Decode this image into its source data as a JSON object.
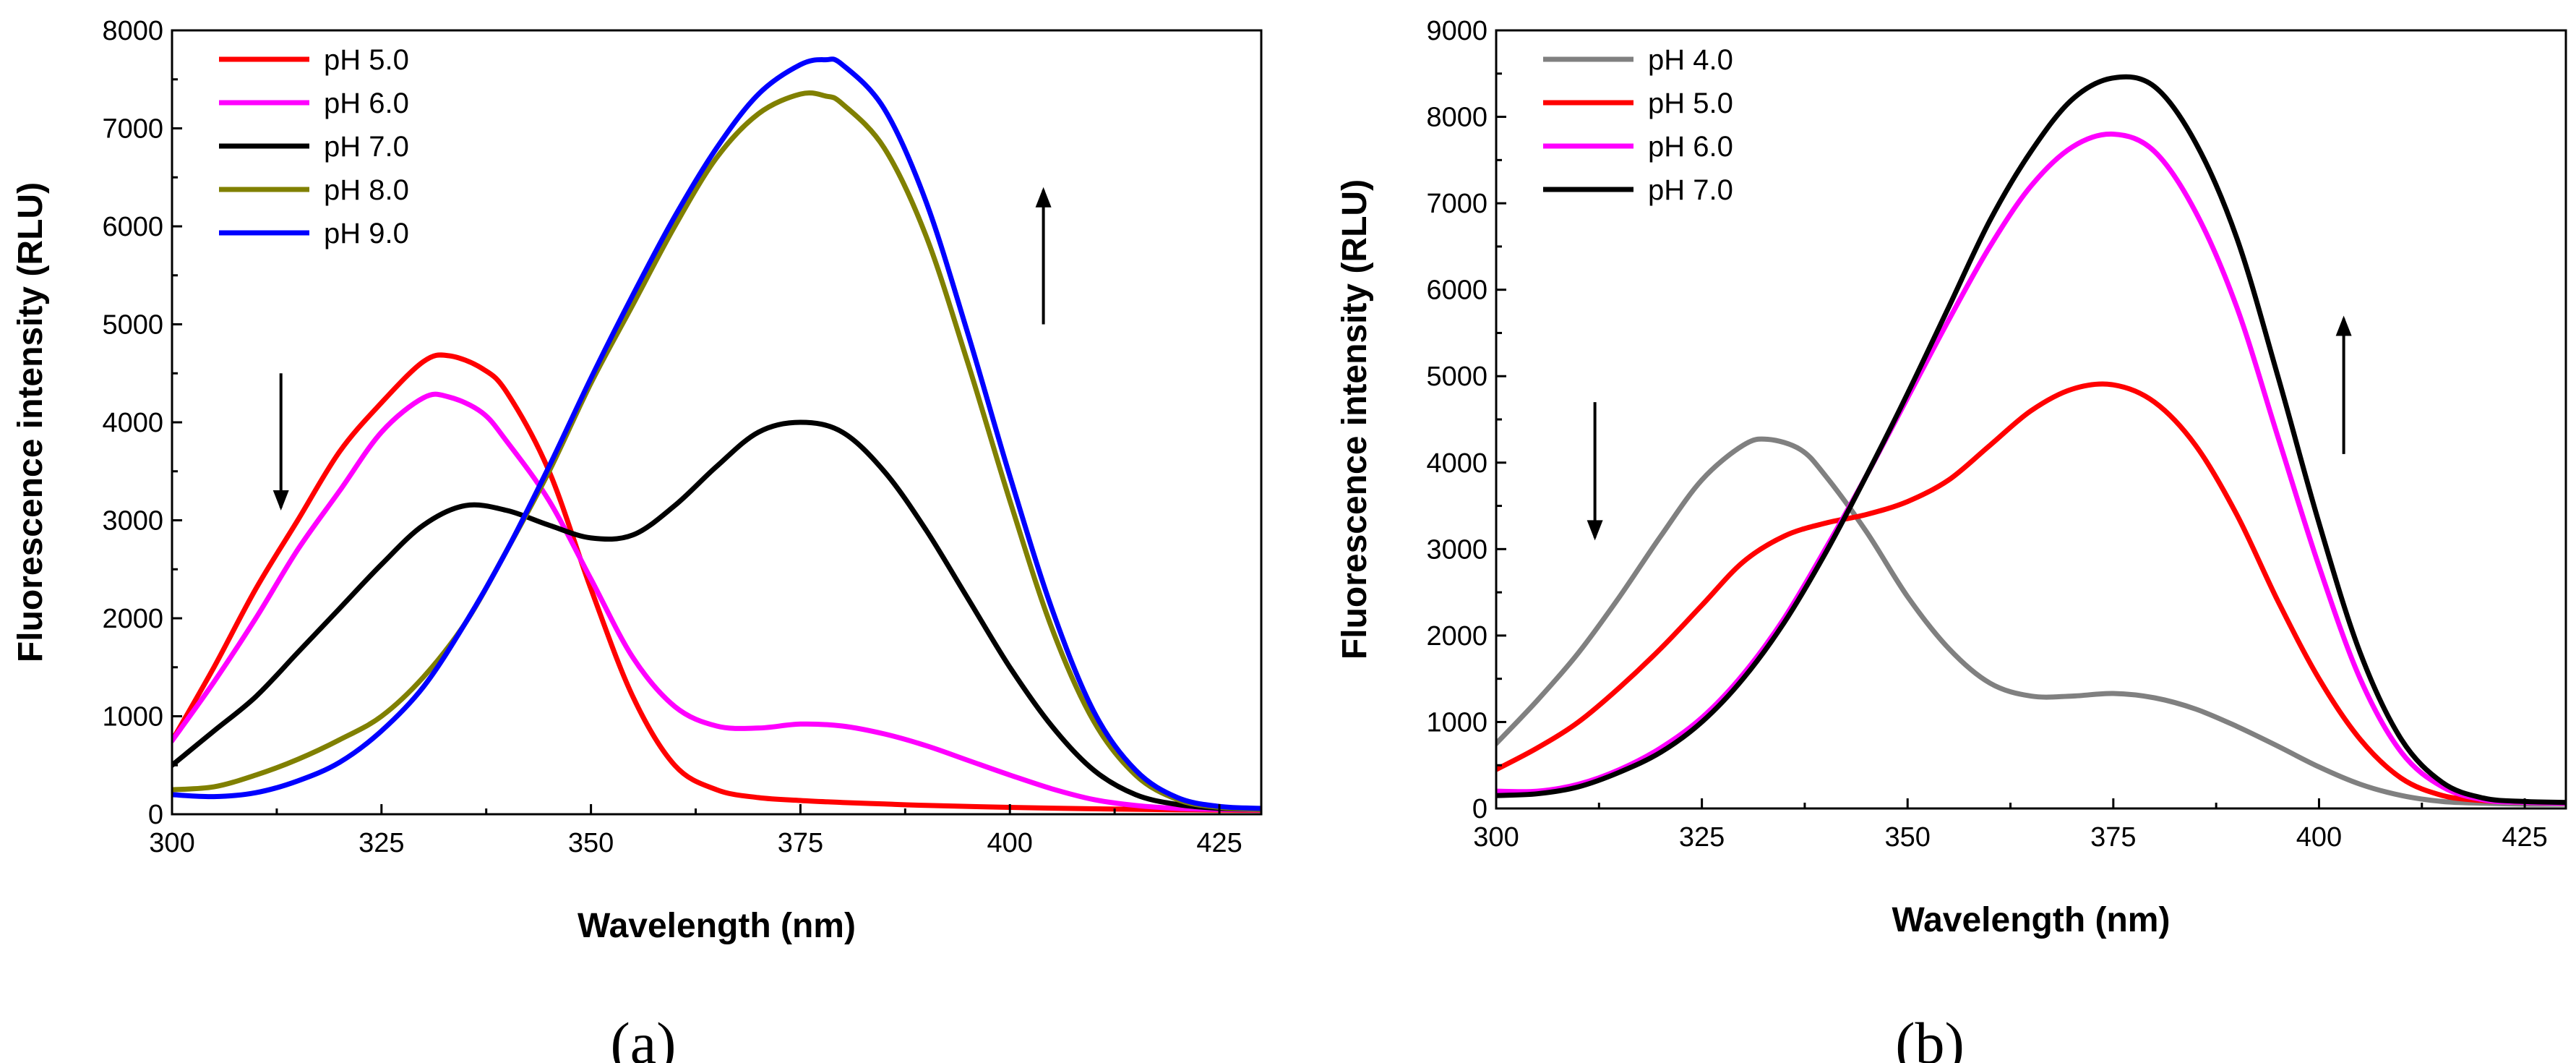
{
  "chart_data": [
    {
      "type": "line",
      "panel_label": "(a)",
      "xlabel": "Wavelength (nm)",
      "ylabel": "Fluorescence intensity (RLU)",
      "xlim": [
        300,
        430
      ],
      "ylim": [
        0,
        8000
      ],
      "xticks": [
        300,
        325,
        350,
        375,
        400,
        425
      ],
      "yticks": [
        0,
        1000,
        2000,
        3000,
        4000,
        5000,
        6000,
        7000,
        8000
      ],
      "legend_position": "top-left",
      "arrows": [
        {
          "x": 313,
          "y_from": 4500,
          "y_to": 3100,
          "direction": "down"
        },
        {
          "x": 404,
          "y_from": 5000,
          "y_to": 6400,
          "direction": "up"
        }
      ],
      "series": [
        {
          "name": "pH 5.0",
          "color": "#ff0000",
          "x": [
            300,
            305,
            310,
            315,
            320,
            325,
            330,
            333,
            337,
            340,
            345,
            350,
            355,
            360,
            365,
            370,
            375,
            380,
            385,
            390,
            400,
            410,
            420,
            430
          ],
          "y": [
            750,
            1500,
            2300,
            3000,
            3700,
            4200,
            4620,
            4680,
            4550,
            4300,
            3500,
            2300,
            1200,
            500,
            250,
            170,
            140,
            120,
            105,
            90,
            70,
            55,
            45,
            40
          ]
        },
        {
          "name": "pH 6.0",
          "color": "#ff00ff",
          "x": [
            300,
            305,
            310,
            315,
            320,
            325,
            330,
            333,
            337,
            340,
            345,
            350,
            355,
            360,
            365,
            370,
            375,
            380,
            385,
            390,
            395,
            400,
            405,
            410,
            415,
            420,
            425,
            430
          ],
          "y": [
            750,
            1350,
            2000,
            2700,
            3300,
            3900,
            4250,
            4260,
            4100,
            3800,
            3200,
            2400,
            1600,
            1100,
            900,
            880,
            920,
            900,
            820,
            700,
            550,
            400,
            260,
            150,
            90,
            60,
            50,
            45
          ]
        },
        {
          "name": "pH 7.0",
          "color": "#000000",
          "x": [
            300,
            305,
            310,
            315,
            320,
            325,
            330,
            335,
            340,
            345,
            350,
            355,
            360,
            365,
            370,
            375,
            380,
            385,
            390,
            395,
            400,
            405,
            410,
            415,
            420,
            425,
            430
          ],
          "y": [
            500,
            850,
            1200,
            1650,
            2100,
            2550,
            2950,
            3150,
            3100,
            2950,
            2820,
            2850,
            3150,
            3550,
            3900,
            4000,
            3900,
            3500,
            2900,
            2200,
            1500,
            900,
            450,
            200,
            100,
            60,
            50
          ]
        },
        {
          "name": "pH 8.0",
          "color": "#808000",
          "x": [
            300,
            305,
            310,
            315,
            320,
            325,
            330,
            335,
            340,
            345,
            350,
            355,
            360,
            365,
            370,
            375,
            378,
            380,
            385,
            390,
            395,
            400,
            405,
            410,
            415,
            420,
            425,
            430
          ],
          "y": [
            250,
            280,
            400,
            560,
            760,
            1000,
            1400,
            1950,
            2700,
            3500,
            4400,
            5200,
            6000,
            6700,
            7150,
            7350,
            7330,
            7250,
            6800,
            5900,
            4600,
            3200,
            1900,
            950,
            400,
            150,
            70,
            50
          ]
        },
        {
          "name": "pH 9.0",
          "color": "#0000ff",
          "x": [
            300,
            305,
            310,
            315,
            320,
            325,
            330,
            335,
            340,
            345,
            350,
            355,
            360,
            365,
            370,
            375,
            378,
            380,
            385,
            390,
            395,
            400,
            405,
            410,
            415,
            420,
            425,
            430
          ],
          "y": [
            200,
            180,
            220,
            340,
            530,
            850,
            1300,
            1950,
            2700,
            3550,
            4450,
            5300,
            6100,
            6800,
            7350,
            7650,
            7700,
            7650,
            7200,
            6250,
            4900,
            3450,
            2100,
            1050,
            450,
            170,
            80,
            60
          ]
        }
      ]
    },
    {
      "type": "line",
      "panel_label": "(b)",
      "xlabel": "Wavelength (nm)",
      "ylabel": "Fluorescence intensity (RLU)",
      "xlim": [
        300,
        430
      ],
      "ylim": [
        0,
        9000
      ],
      "xticks": [
        300,
        325,
        350,
        375,
        400,
        425
      ],
      "yticks": [
        0,
        1000,
        2000,
        3000,
        4000,
        5000,
        6000,
        7000,
        8000,
        9000
      ],
      "legend_position": "top-left",
      "arrows": [
        {
          "x": 312,
          "y_from": 4700,
          "y_to": 3100,
          "direction": "down"
        },
        {
          "x": 403,
          "y_from": 4100,
          "y_to": 5700,
          "direction": "up"
        }
      ],
      "series": [
        {
          "name": "pH 4.0",
          "color": "#808080",
          "x": [
            300,
            305,
            310,
            315,
            320,
            325,
            330,
            333,
            337,
            340,
            345,
            350,
            355,
            360,
            365,
            370,
            375,
            380,
            385,
            390,
            395,
            400,
            405,
            410,
            415,
            420,
            425,
            430
          ],
          "y": [
            750,
            1250,
            1800,
            2450,
            3150,
            3800,
            4200,
            4270,
            4150,
            3850,
            3200,
            2450,
            1850,
            1450,
            1300,
            1300,
            1330,
            1280,
            1150,
            950,
            720,
            480,
            280,
            150,
            80,
            60,
            50,
            50
          ]
        },
        {
          "name": "pH 5.0",
          "color": "#ff0000",
          "x": [
            300,
            305,
            310,
            315,
            320,
            325,
            330,
            335,
            340,
            345,
            350,
            355,
            360,
            365,
            370,
            375,
            380,
            385,
            390,
            395,
            400,
            405,
            410,
            415,
            420,
            425,
            430
          ],
          "y": [
            450,
            700,
            1000,
            1400,
            1850,
            2350,
            2850,
            3150,
            3300,
            3400,
            3550,
            3800,
            4200,
            4600,
            4850,
            4900,
            4700,
            4200,
            3400,
            2400,
            1500,
            800,
            350,
            150,
            90,
            70,
            60
          ]
        },
        {
          "name": "pH 6.0",
          "color": "#ff00ff",
          "x": [
            300,
            305,
            310,
            315,
            320,
            325,
            330,
            335,
            340,
            345,
            350,
            355,
            360,
            365,
            370,
            375,
            380,
            385,
            390,
            395,
            400,
            405,
            410,
            415,
            420,
            425,
            430
          ],
          "y": [
            200,
            200,
            280,
            450,
            700,
            1050,
            1550,
            2200,
            3000,
            3850,
            4750,
            5650,
            6500,
            7200,
            7650,
            7800,
            7600,
            6900,
            5800,
            4300,
            2800,
            1500,
            650,
            250,
            100,
            70,
            60
          ]
        },
        {
          "name": "pH 7.0",
          "color": "#000000",
          "x": [
            300,
            305,
            310,
            315,
            320,
            325,
            330,
            335,
            340,
            345,
            350,
            355,
            360,
            365,
            370,
            375,
            380,
            385,
            390,
            395,
            400,
            405,
            410,
            415,
            420,
            425,
            430
          ],
          "y": [
            150,
            170,
            250,
            420,
            650,
            1000,
            1500,
            2150,
            2950,
            3850,
            4800,
            5800,
            6800,
            7600,
            8200,
            8450,
            8350,
            7700,
            6600,
            5000,
            3300,
            1800,
            800,
            300,
            120,
            80,
            70
          ]
        }
      ]
    }
  ]
}
